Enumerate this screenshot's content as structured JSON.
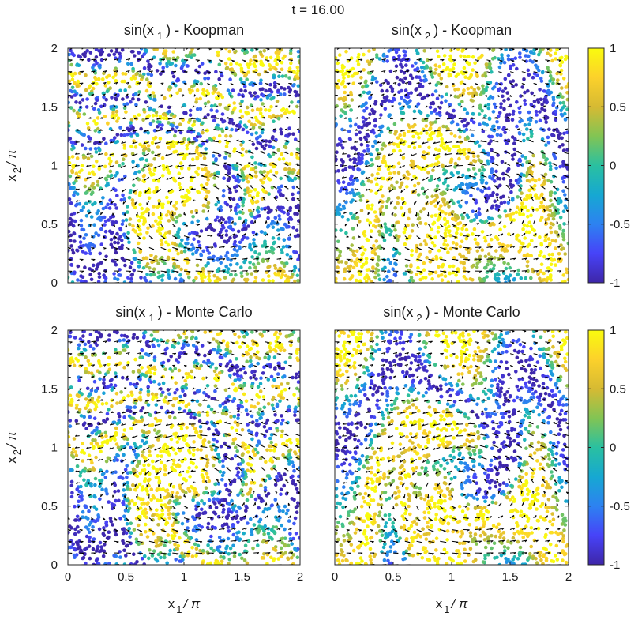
{
  "figure_title": "t = 16.00",
  "chart_data": [
    {
      "type": "scatter",
      "title": "sin(x₁) - Koopman",
      "title_parts": {
        "pre": "sin(x",
        "sub": "1",
        "post": ") - Koopman"
      },
      "field": "sin_x1",
      "xlim": [
        0,
        2
      ],
      "ylim": [
        0,
        2
      ],
      "xticks": [
        "0",
        "0.5",
        "1",
        "1.5",
        "2"
      ],
      "yticks": [
        "0",
        "0.5",
        "1",
        "1.5",
        "2"
      ],
      "show_xticklabels": false,
      "show_yticklabels": true,
      "ylabel": "x₂/π",
      "xlabel": ""
    },
    {
      "type": "scatter",
      "title": "sin(x₂) - Koopman",
      "title_parts": {
        "pre": "sin(x",
        "sub": "2",
        "post": ") - Koopman"
      },
      "field": "sin_x2",
      "xlim": [
        0,
        2
      ],
      "ylim": [
        0,
        2
      ],
      "xticks": [
        "0",
        "0.5",
        "1",
        "1.5",
        "2"
      ],
      "yticks": [
        "0",
        "0.5",
        "1",
        "1.5",
        "2"
      ],
      "show_xticklabels": false,
      "show_yticklabels": false,
      "ylabel": "",
      "xlabel": "",
      "colorbar": {
        "ticks": [
          "1",
          "0.5",
          "0",
          "-0.5",
          "-1"
        ],
        "range": [
          -1,
          1
        ]
      }
    },
    {
      "type": "scatter",
      "title": "sin(x₁) - Monte Carlo",
      "title_parts": {
        "pre": "sin(x",
        "sub": "1",
        "post": ") - Monte Carlo"
      },
      "field": "sin_x1",
      "xlim": [
        0,
        2
      ],
      "ylim": [
        0,
        2
      ],
      "xticks": [
        "0",
        "0.5",
        "1",
        "1.5",
        "2"
      ],
      "yticks": [
        "0",
        "0.5",
        "1",
        "1.5",
        "2"
      ],
      "show_xticklabels": true,
      "show_yticklabels": true,
      "ylabel": "x₂/π",
      "xlabel": "x₁/π"
    },
    {
      "type": "scatter",
      "title": "sin(x₂) - Monte Carlo",
      "title_parts": {
        "pre": "sin(x",
        "sub": "2",
        "post": ") - Monte Carlo"
      },
      "field": "sin_x2",
      "xlim": [
        0,
        2
      ],
      "ylim": [
        0,
        2
      ],
      "xticks": [
        "0",
        "0.5",
        "1",
        "1.5",
        "2"
      ],
      "yticks": [
        "0",
        "0.5",
        "1",
        "1.5",
        "2"
      ],
      "show_xticklabels": true,
      "show_yticklabels": false,
      "ylabel": "",
      "xlabel": "x₁/π",
      "colorbar": {
        "ticks": [
          "1",
          "0.5",
          "0",
          "-0.5",
          "-1"
        ],
        "range": [
          -1,
          1
        ]
      }
    }
  ],
  "axis_label_parts": {
    "x": {
      "pre": "x",
      "sub": "1",
      "post": "/ π"
    },
    "y": {
      "pre": "x",
      "sub": "2",
      "post": "/ π"
    }
  },
  "colormap": [
    "#3e26a8",
    "#4743f8",
    "#2d82f1",
    "#16a8d2",
    "#2ac0a0",
    "#82c454",
    "#d6ba33",
    "#fcd12b",
    "#f9fb0e"
  ]
}
